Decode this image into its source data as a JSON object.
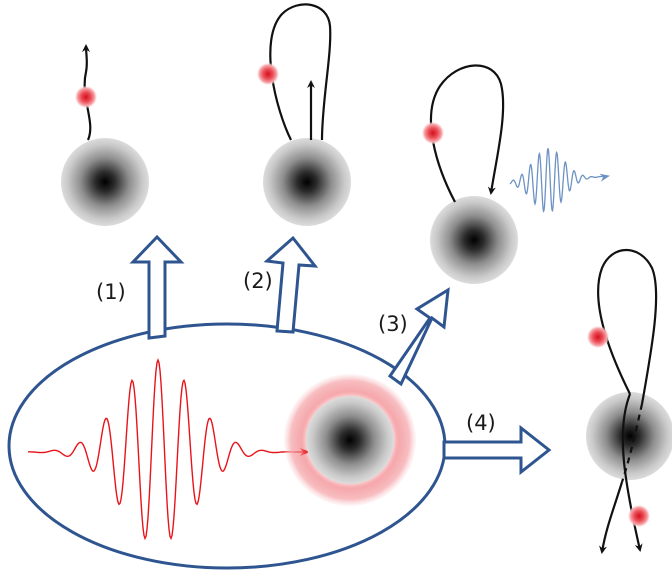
{
  "steps": [
    {
      "label": "(1)"
    },
    {
      "label": "(2)"
    },
    {
      "label": "(3)"
    },
    {
      "label": "(4)"
    }
  ],
  "colors": {
    "ellipse_stroke": "#2f5590",
    "arrow_stroke": "#2f5590",
    "laser_pulse": "#e8141b",
    "electron": "#e8141b",
    "emitted_wave": "#6d93c4",
    "trajectory": "#111111"
  },
  "icons": [
    "atom-core",
    "electron",
    "laser-pulse",
    "emitted-wave"
  ]
}
